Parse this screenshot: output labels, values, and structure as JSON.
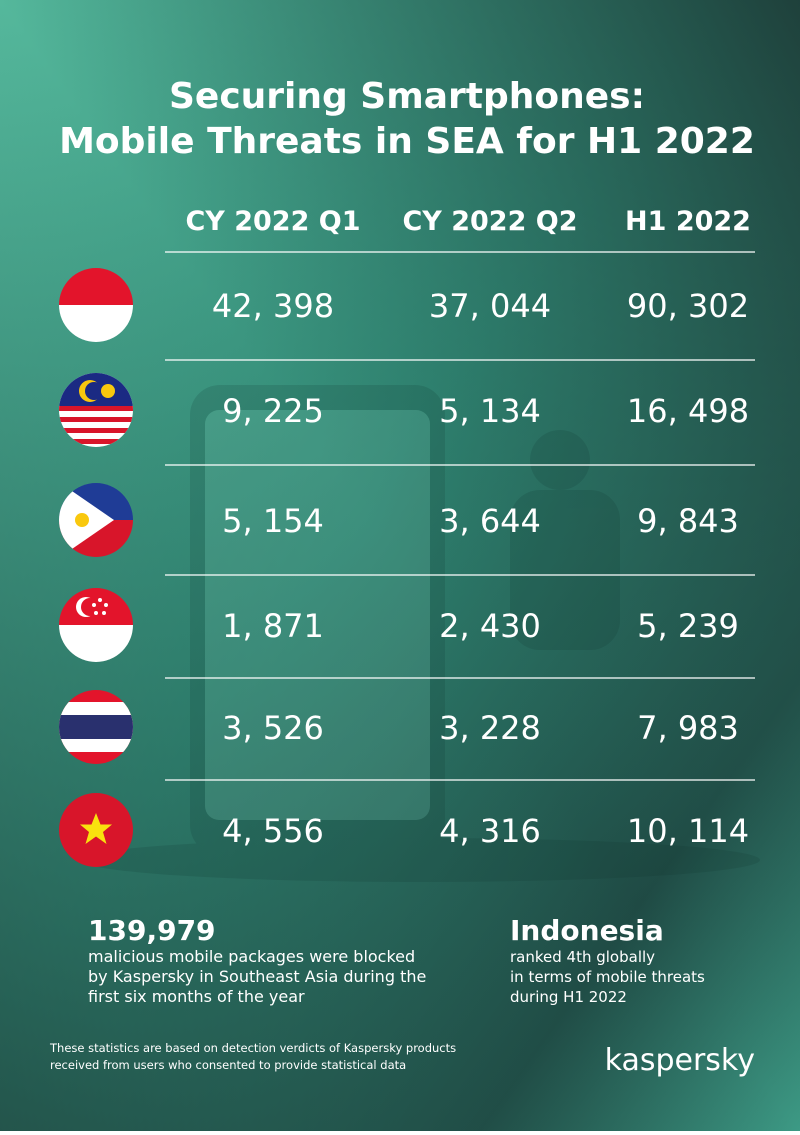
{
  "header": {
    "title": [
      "Securing Smartphones:",
      "Mobile Threats in SEA for H1 2022"
    ]
  },
  "table": {
    "columns": [
      "CY 2022 Q1",
      "CY 2022 Q2",
      "H1 2022"
    ],
    "rows": [
      [
        "42, 398",
        "37, 044",
        "90, 302"
      ],
      [
        "9, 225",
        "5, 134",
        "16, 498"
      ],
      [
        "5, 154",
        "3, 644",
        "9, 843"
      ],
      [
        "1, 871",
        "2, 430",
        "5, 239"
      ],
      [
        "3, 526",
        "3, 228",
        "7, 983"
      ],
      [
        "4, 556",
        "4, 316",
        "10, 114"
      ]
    ]
  },
  "stats": [
    {
      "figure": "139,979",
      "lines": [
        "malicious mobile packages were blocked",
        "by Kaspersky in Southeast Asia during the",
        "first six months of the year"
      ]
    },
    {
      "figure": "Indonesia",
      "lines": [
        "ranked 4th globally",
        "in terms of mobile threats",
        "during H1 2022"
      ]
    }
  ],
  "footnote": [
    "These statistics are based on detection verdicts of Kaspersky products",
    "received from users who consented to provide statistical data"
  ],
  "brand": "kaspersky"
}
